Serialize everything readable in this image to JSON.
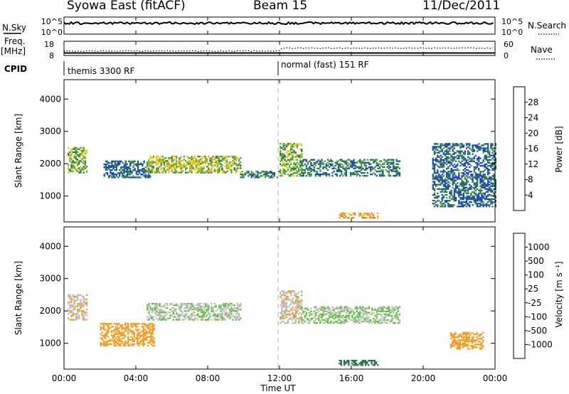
{
  "header": {
    "station": "Syowa East (fitACF)",
    "beam": "Beam 15",
    "date": "11/Dec/2011"
  },
  "labels": {
    "nsky": "N.Sky",
    "nsearch": "N.Search",
    "freq": "Freq.",
    "freq_unit": "[MHz]",
    "nave": "Nave",
    "cpid": "CPID",
    "ylabel": "Slant Range [km]",
    "xlabel": "Time UT",
    "power_cbar_label": "Power [dB]",
    "velocity_cbar_label": "Velocity [m s⁻¹]"
  },
  "noise_panel": {
    "left_ticks": [
      "10^5",
      "10^0"
    ],
    "right_ticks": [
      "10^5",
      "10^0"
    ]
  },
  "freq_panel": {
    "left_ticks": [
      "18",
      "8"
    ],
    "right_ticks": [
      "60",
      "0"
    ]
  },
  "cpid_segments": [
    {
      "label": "themis 3300 RF",
      "start_hour": 0
    },
    {
      "label": "normal (fast) 151 RF",
      "start_hour": 12
    }
  ],
  "time_axis": {
    "ticks": [
      "00:00",
      "04:00",
      "08:00",
      "12:00",
      "16:00",
      "20:00",
      "00:00"
    ],
    "tick_hours": [
      0,
      4,
      8,
      12,
      16,
      20,
      24
    ]
  },
  "range_axis": {
    "ticks": [
      "1000",
      "2000",
      "3000",
      "4000"
    ],
    "tick_values": [
      1000,
      2000,
      3000,
      4000
    ],
    "ylim": [
      200,
      4600
    ]
  },
  "power_colorbar": {
    "labels": [
      "4",
      "8",
      "12",
      "16",
      "20",
      "24",
      "28"
    ],
    "colors": [
      "#1f2bff",
      "#1f4fb0",
      "#2e7a4a",
      "#5aaa44",
      "#e0c81a",
      "#f2a02a",
      "#f07818",
      "#e01e10"
    ]
  },
  "velocity_colorbar": {
    "labels": [
      "-1000",
      "-500",
      "-100",
      "-25",
      "25",
      "100",
      "500",
      "1000"
    ],
    "colors": [
      "#e01e10",
      "#f07818",
      "#f2a02a",
      "#bfbfbf",
      "#bfbfbf",
      "#5fc33d",
      "#2e7a4a",
      "#1f4fb0",
      "#1f2bff"
    ]
  },
  "chart_data": [
    {
      "type": "heatmap",
      "title": "Power",
      "xlabel": "Time UT",
      "ylabel": "Slant Range [km]",
      "xlim": [
        0,
        24
      ],
      "ylim": [
        200,
        4600
      ],
      "colorbar_label": "Power [dB]",
      "echo_bands": [
        {
          "start_hour": 0.2,
          "end_hour": 1.3,
          "range_min": 1700,
          "range_max": 2500,
          "power_db": 14
        },
        {
          "start_hour": 2.2,
          "end_hour": 4.8,
          "range_min": 1550,
          "range_max": 2050,
          "power_db": 8
        },
        {
          "start_hour": 4.6,
          "end_hour": 9.8,
          "range_min": 1700,
          "range_max": 2200,
          "power_db": 16
        },
        {
          "start_hour": 9.8,
          "end_hour": 12.0,
          "range_min": 1550,
          "range_max": 1750,
          "power_db": 10
        },
        {
          "start_hour": 12.0,
          "end_hour": 13.2,
          "range_min": 1600,
          "range_max": 2600,
          "power_db": 14
        },
        {
          "start_hour": 13.2,
          "end_hour": 18.7,
          "range_min": 1600,
          "range_max": 2100,
          "power_db": 10
        },
        {
          "start_hour": 15.3,
          "end_hour": 17.5,
          "range_min": 300,
          "range_max": 450,
          "power_db": 22
        },
        {
          "start_hour": 20.5,
          "end_hour": 24.0,
          "range_min": 650,
          "range_max": 2600,
          "power_db": 8
        }
      ]
    },
    {
      "type": "heatmap",
      "title": "Velocity",
      "xlabel": "Time UT",
      "ylabel": "Slant Range [km]",
      "xlim": [
        0,
        24
      ],
      "ylim": [
        200,
        4600
      ],
      "colorbar_label": "Velocity [m s⁻¹]",
      "echo_bands": [
        {
          "start_hour": 0.2,
          "end_hour": 1.3,
          "range_min": 1700,
          "range_max": 2500,
          "velocity": -60
        },
        {
          "start_hour": 2.0,
          "end_hour": 5.0,
          "range_min": 900,
          "range_max": 1600,
          "velocity": -200
        },
        {
          "start_hour": 4.6,
          "end_hour": 9.8,
          "range_min": 1700,
          "range_max": 2200,
          "velocity": 0
        },
        {
          "start_hour": 12.0,
          "end_hour": 13.2,
          "range_min": 1600,
          "range_max": 2600,
          "velocity": -60
        },
        {
          "start_hour": 13.2,
          "end_hour": 18.7,
          "range_min": 1600,
          "range_max": 2100,
          "velocity": 10
        },
        {
          "start_hour": 15.3,
          "end_hour": 17.5,
          "range_min": 300,
          "range_max": 450,
          "velocity": 200
        },
        {
          "start_hour": 21.5,
          "end_hour": 23.3,
          "range_min": 800,
          "range_max": 1300,
          "velocity": -300
        }
      ]
    }
  ]
}
